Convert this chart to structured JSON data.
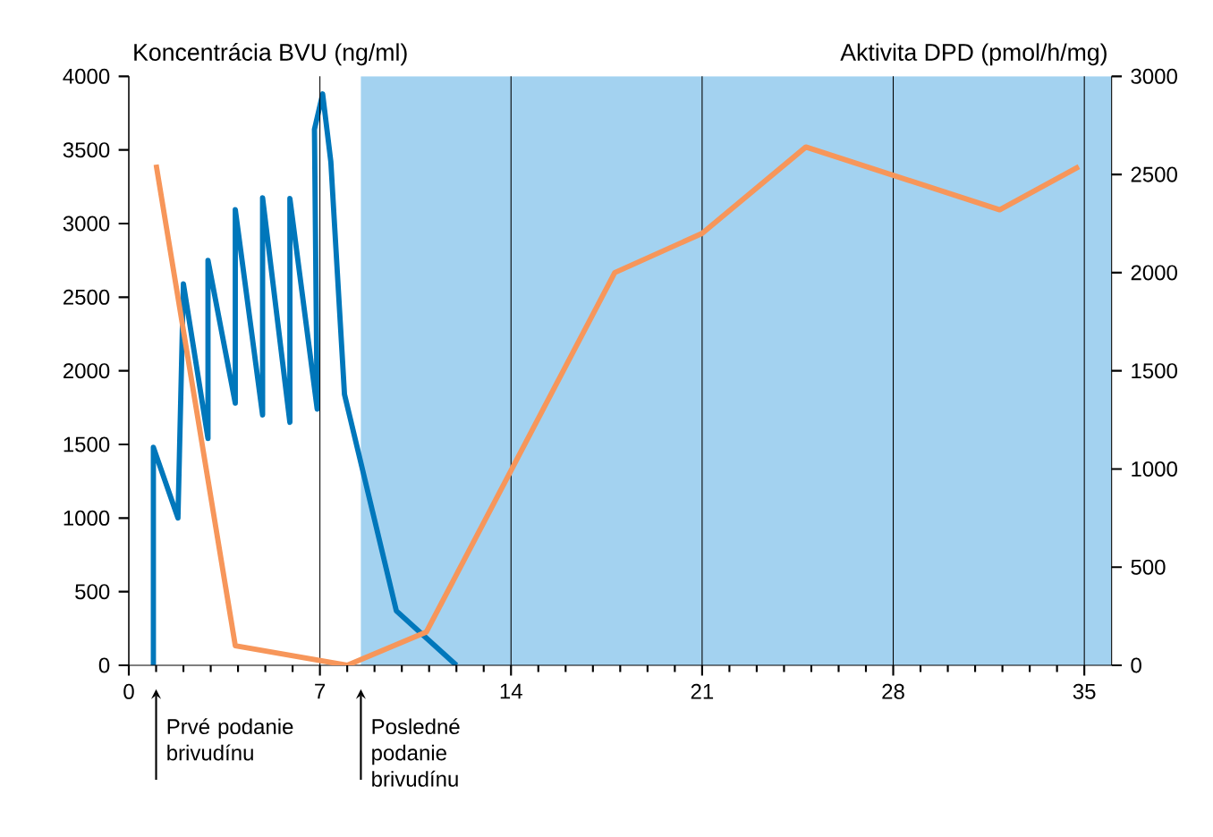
{
  "chart_data": {
    "type": "line",
    "ylabel": "Koncentrácia BVU (ng/ml)",
    "y2label": "Aktivita DPD (pmol/h/mg)",
    "xlim": [
      0,
      36
    ],
    "xticks": [
      0,
      7,
      14,
      21,
      28,
      35
    ],
    "ylim": [
      0,
      4000
    ],
    "yticks": [
      0,
      500,
      1000,
      1500,
      2000,
      2500,
      3000,
      3500,
      4000
    ],
    "y2lim": [
      0,
      3000
    ],
    "y2ticks": [
      0,
      500,
      1000,
      1500,
      2000,
      2500,
      3000
    ],
    "grid": "x",
    "series": [
      {
        "color": "#0077bb",
        "x": [
          0.9,
          0.9,
          1.8,
          2.0,
          2.9,
          2.9,
          3.9,
          3.9,
          4.9,
          4.9,
          5.9,
          5.9,
          6.9,
          6.8,
          7.1,
          7.4,
          7.9,
          9.8,
          12.0
        ],
        "values": [
          0,
          1480,
          1000,
          2590,
          1540,
          2750,
          1780,
          3095,
          1700,
          3175,
          1650,
          3170,
          1740,
          3640,
          3880,
          3420,
          1840,
          370,
          0
        ]
      },
      {
        "color": "#f7965a",
        "axis": "y2",
        "x": [
          1.0,
          3.9,
          8.0,
          10.9,
          17.8,
          21.0,
          24.8,
          31.9,
          34.8
        ],
        "values": [
          2550,
          100,
          0,
          170,
          2000,
          2200,
          2640,
          2320,
          2540
        ]
      }
    ],
    "bands": [
      {
        "axis": "x",
        "from": 8.5,
        "to": 36,
        "color": "#a3d2f0"
      }
    ],
    "annotations": [
      {
        "text": "Prvé podanie brivudínu",
        "x": 1,
        "y": 0
      },
      {
        "text": "Posledné podanie brivudínu",
        "x": 8.5,
        "y": 0
      }
    ]
  }
}
